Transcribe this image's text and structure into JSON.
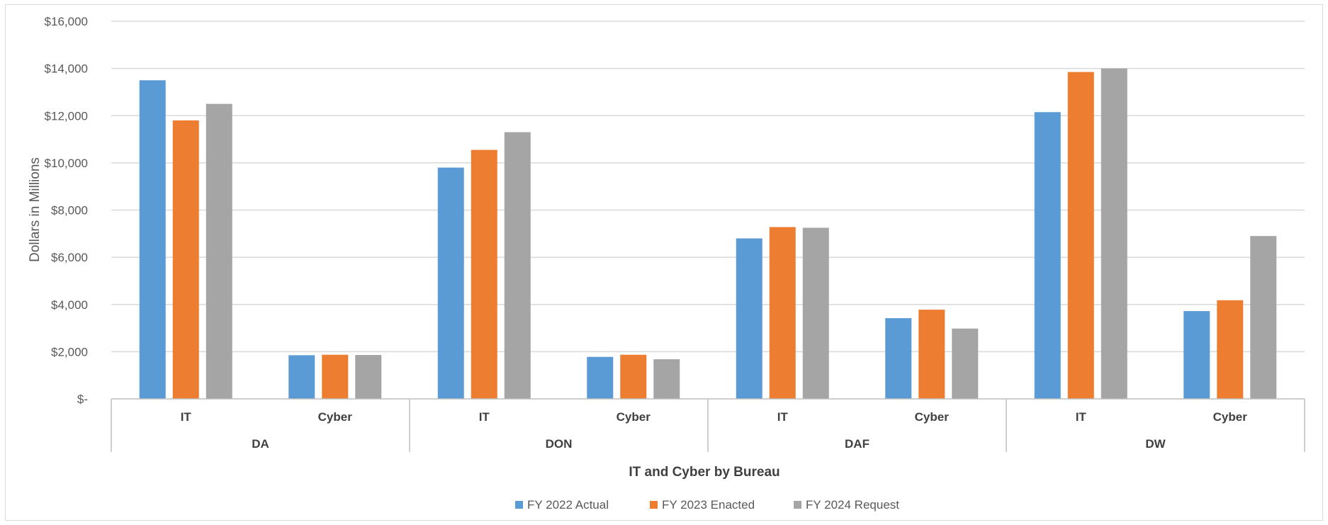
{
  "chart_data": {
    "type": "bar",
    "title": "",
    "xlabel": "IT and Cyber by Bureau",
    "ylabel": "Dollars in Millions",
    "ylim": [
      0,
      16000
    ],
    "yticks": [
      0,
      2000,
      4000,
      6000,
      8000,
      10000,
      12000,
      14000,
      16000
    ],
    "ytick_labels": [
      "$-",
      "$2,000",
      "$4,000",
      "$6,000",
      "$8,000",
      "$10,000",
      "$12,000",
      "$14,000",
      "$16,000"
    ],
    "groups": [
      "DA",
      "DON",
      "DAF",
      "DW"
    ],
    "categories": [
      "IT",
      "Cyber",
      "IT",
      "Cyber",
      "IT",
      "Cyber",
      "IT",
      "Cyber"
    ],
    "series": [
      {
        "name": "FY 2022 Actual",
        "color": "#5B9BD5",
        "values": [
          13500,
          1850,
          9800,
          1780,
          6800,
          3420,
          12150,
          3720
        ]
      },
      {
        "name": "FY 2023 Enacted",
        "color": "#ED7D31",
        "values": [
          11800,
          1870,
          10550,
          1870,
          7280,
          3780,
          13850,
          4180
        ]
      },
      {
        "name": "FY 2024 Request",
        "color": "#A5A5A5",
        "values": [
          12500,
          1860,
          11300,
          1680,
          7250,
          2980,
          14000,
          6900
        ]
      }
    ],
    "grid": true,
    "legend_position": "bottom"
  }
}
